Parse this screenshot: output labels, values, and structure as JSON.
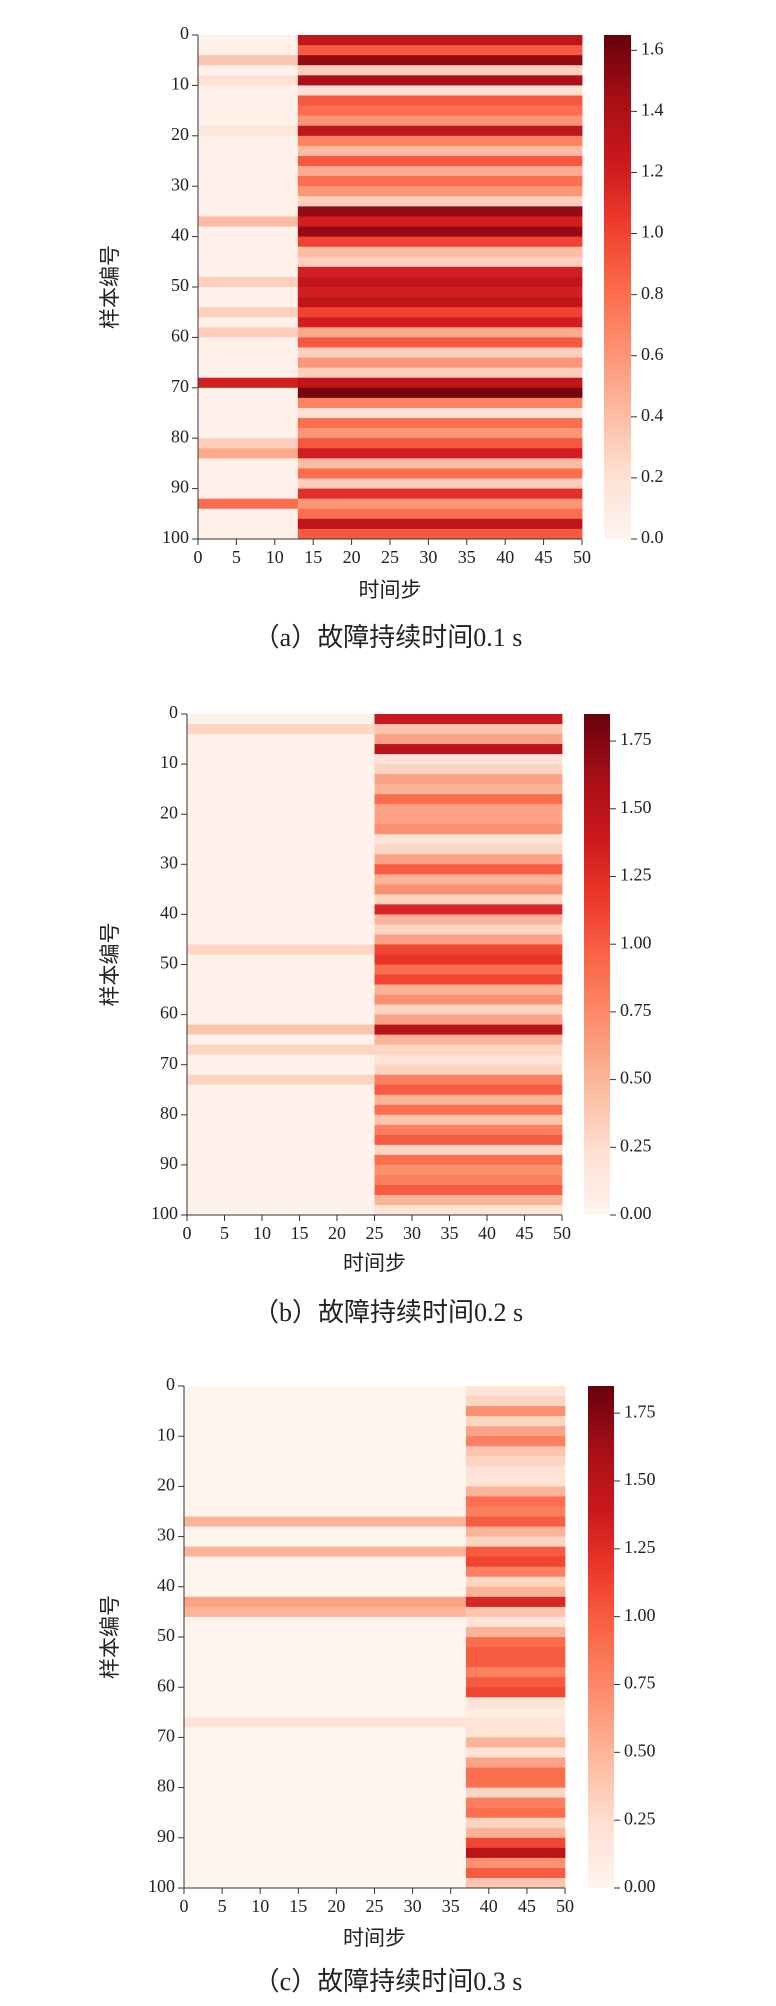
{
  "chart_data": [
    {
      "type": "heatmap",
      "caption": "（a）故障持续时间0.1 s",
      "xlabel": "时间步",
      "ylabel": "样本编号",
      "colormap": "Reds",
      "xlim": [
        0,
        50
      ],
      "ylim": [
        0,
        100
      ],
      "y_inverted": true,
      "clim": [
        0,
        1.65
      ],
      "xticks": [
        0,
        5,
        10,
        15,
        20,
        25,
        30,
        35,
        40,
        45,
        50
      ],
      "yticks": [
        0,
        10,
        20,
        30,
        40,
        50,
        60,
        70,
        80,
        90,
        100
      ],
      "cbar_ticks": [
        {
          "value": 0,
          "label": "0.0"
        },
        0.2,
        0.4,
        0.6,
        0.8,
        {
          "value": 1,
          "label": "1.0"
        },
        1.2,
        1.4,
        1.6
      ],
      "x_edges": [
        0,
        13,
        50
      ],
      "y_edges": [
        0,
        2,
        4,
        6,
        8,
        10,
        12,
        14,
        16,
        18,
        20,
        22,
        24,
        26,
        28,
        30,
        32,
        34,
        36,
        38,
        40,
        42,
        44,
        46,
        48,
        50,
        52,
        54,
        56,
        58,
        60,
        62,
        64,
        66,
        68,
        70,
        72,
        74,
        76,
        78,
        80,
        82,
        84,
        86,
        88,
        90,
        92,
        94,
        96,
        98,
        100
      ],
      "values": [
        [
          0.05,
          1.3
        ],
        [
          0.05,
          0.9
        ],
        [
          0.35,
          1.5
        ],
        [
          0.05,
          0.3
        ],
        [
          0.2,
          1.4
        ],
        [
          0.05,
          0.2
        ],
        [
          0.05,
          0.9
        ],
        [
          0.05,
          0.8
        ],
        [
          0.05,
          0.6
        ],
        [
          0.15,
          1.3
        ],
        [
          0.05,
          0.7
        ],
        [
          0.05,
          0.4
        ],
        [
          0.05,
          0.9
        ],
        [
          0.05,
          0.5
        ],
        [
          0.05,
          0.8
        ],
        [
          0.05,
          0.6
        ],
        [
          0.05,
          0.3
        ],
        [
          0.05,
          1.5
        ],
        [
          0.4,
          1.2
        ],
        [
          0.05,
          1.5
        ],
        [
          0.05,
          1.0
        ],
        [
          0.05,
          0.4
        ],
        [
          0.05,
          0.3
        ],
        [
          0.05,
          1.2
        ],
        [
          0.3,
          1.3
        ],
        [
          0.05,
          1.2
        ],
        [
          0.05,
          1.3
        ],
        [
          0.3,
          1.0
        ],
        [
          0.05,
          1.2
        ],
        [
          0.3,
          0.5
        ],
        [
          0.05,
          0.9
        ],
        [
          0.05,
          0.3
        ],
        [
          0.05,
          0.6
        ],
        [
          0.05,
          0.3
        ],
        [
          1.2,
          1.3
        ],
        [
          0.05,
          1.6
        ],
        [
          0.05,
          0.7
        ],
        [
          0.05,
          0.2
        ],
        [
          0.05,
          0.8
        ],
        [
          0.05,
          0.6
        ],
        [
          0.3,
          0.9
        ],
        [
          0.5,
          1.2
        ],
        [
          0.05,
          0.4
        ],
        [
          0.05,
          0.8
        ],
        [
          0.05,
          0.3
        ],
        [
          0.05,
          1.1
        ],
        [
          0.8,
          0.6
        ],
        [
          0.05,
          0.8
        ],
        [
          0.05,
          1.3
        ],
        [
          0.05,
          0.9
        ]
      ]
    },
    {
      "type": "heatmap",
      "caption": "（b）故障持续时间0.2 s",
      "xlabel": "时间步",
      "ylabel": "样本编号",
      "colormap": "Reds",
      "xlim": [
        0,
        50
      ],
      "ylim": [
        0,
        100
      ],
      "y_inverted": true,
      "clim": [
        0,
        1.85
      ],
      "xticks": [
        0,
        5,
        10,
        15,
        20,
        25,
        30,
        35,
        40,
        45,
        50
      ],
      "yticks": [
        0,
        10,
        20,
        30,
        40,
        50,
        60,
        70,
        80,
        90,
        100
      ],
      "cbar_ticks": [
        {
          "value": 0,
          "label": "0.00"
        },
        0.25,
        {
          "value": 0.5,
          "label": "0.50"
        },
        0.75,
        {
          "value": 1,
          "label": "1.00"
        },
        1.25,
        {
          "value": 1.5,
          "label": "1.50"
        },
        1.75
      ],
      "x_edges": [
        0,
        25,
        50
      ],
      "y_edges": [
        0,
        2,
        4,
        6,
        8,
        10,
        12,
        14,
        16,
        18,
        20,
        22,
        24,
        26,
        28,
        30,
        32,
        34,
        36,
        38,
        40,
        42,
        44,
        46,
        48,
        50,
        52,
        54,
        56,
        58,
        60,
        62,
        64,
        66,
        68,
        70,
        72,
        74,
        76,
        78,
        80,
        82,
        84,
        86,
        88,
        90,
        92,
        94,
        96,
        98,
        100
      ],
      "values": [
        [
          0.03,
          1.4
        ],
        [
          0.3,
          0.4
        ],
        [
          0.03,
          0.6
        ],
        [
          0.03,
          1.5
        ],
        [
          0.03,
          0.2
        ],
        [
          0.03,
          0.3
        ],
        [
          0.03,
          0.6
        ],
        [
          0.03,
          0.5
        ],
        [
          0.03,
          0.9
        ],
        [
          0.03,
          0.6
        ],
        [
          0.03,
          0.6
        ],
        [
          0.03,
          0.7
        ],
        [
          0.03,
          0.2
        ],
        [
          0.03,
          0.3
        ],
        [
          0.03,
          0.6
        ],
        [
          0.03,
          1.0
        ],
        [
          0.03,
          0.5
        ],
        [
          0.03,
          0.7
        ],
        [
          0.03,
          0.3
        ],
        [
          0.03,
          1.3
        ],
        [
          0.03,
          0.5
        ],
        [
          0.03,
          0.3
        ],
        [
          0.03,
          0.6
        ],
        [
          0.3,
          1.1
        ],
        [
          0.03,
          1.2
        ],
        [
          0.03,
          0.9
        ],
        [
          0.03,
          1.1
        ],
        [
          0.03,
          0.5
        ],
        [
          0.03,
          0.7
        ],
        [
          0.03,
          0.3
        ],
        [
          0.03,
          0.6
        ],
        [
          0.4,
          1.5
        ],
        [
          0.03,
          0.5
        ],
        [
          0.3,
          0.3
        ],
        [
          0.03,
          0.2
        ],
        [
          0.03,
          0.3
        ],
        [
          0.3,
          0.8
        ],
        [
          0.03,
          1.0
        ],
        [
          0.03,
          0.5
        ],
        [
          0.03,
          0.9
        ],
        [
          0.03,
          0.4
        ],
        [
          0.03,
          0.8
        ],
        [
          0.03,
          1.0
        ],
        [
          0.03,
          0.3
        ],
        [
          0.03,
          0.9
        ],
        [
          0.03,
          0.7
        ],
        [
          0.03,
          0.8
        ],
        [
          0.03,
          1.0
        ],
        [
          0.03,
          0.5
        ],
        [
          0.03,
          0.2
        ]
      ]
    },
    {
      "type": "heatmap",
      "caption": "（c）故障持续时间0.3 s",
      "xlabel": "时间步",
      "ylabel": "样本编号",
      "colormap": "Reds",
      "xlim": [
        0,
        50
      ],
      "ylim": [
        0,
        100
      ],
      "y_inverted": true,
      "clim": [
        0,
        1.85
      ],
      "xticks": [
        0,
        5,
        10,
        15,
        20,
        25,
        30,
        35,
        40,
        45,
        50
      ],
      "yticks": [
        0,
        10,
        20,
        30,
        40,
        50,
        60,
        70,
        80,
        90,
        100
      ],
      "cbar_ticks": [
        {
          "value": 0,
          "label": "0.00"
        },
        0.25,
        {
          "value": 0.5,
          "label": "0.50"
        },
        0.75,
        {
          "value": 1,
          "label": "1.00"
        },
        1.25,
        {
          "value": 1.5,
          "label": "1.50"
        },
        1.75
      ],
      "x_edges": [
        0,
        37,
        50
      ],
      "y_edges": [
        0,
        2,
        4,
        6,
        8,
        10,
        12,
        14,
        16,
        18,
        20,
        22,
        24,
        26,
        28,
        30,
        32,
        34,
        36,
        38,
        40,
        42,
        44,
        46,
        48,
        50,
        52,
        54,
        56,
        58,
        60,
        62,
        64,
        66,
        68,
        70,
        72,
        74,
        76,
        78,
        80,
        82,
        84,
        86,
        88,
        90,
        92,
        94,
        96,
        98,
        100
      ],
      "values": [
        [
          0.02,
          0.2
        ],
        [
          0.02,
          0.3
        ],
        [
          0.02,
          0.7
        ],
        [
          0.02,
          0.3
        ],
        [
          0.02,
          0.6
        ],
        [
          0.02,
          0.8
        ],
        [
          0.02,
          0.4
        ],
        [
          0.02,
          0.3
        ],
        [
          0.02,
          0.2
        ],
        [
          0.02,
          0.2
        ],
        [
          0.02,
          0.5
        ],
        [
          0.02,
          0.9
        ],
        [
          0.02,
          0.8
        ],
        [
          0.5,
          1.0
        ],
        [
          0.02,
          0.5
        ],
        [
          0.02,
          0.3
        ],
        [
          0.5,
          1.0
        ],
        [
          0.02,
          1.1
        ],
        [
          0.02,
          0.8
        ],
        [
          0.02,
          0.3
        ],
        [
          0.02,
          0.5
        ],
        [
          0.6,
          1.3
        ],
        [
          0.5,
          0.4
        ],
        [
          0.02,
          0.2
        ],
        [
          0.02,
          0.5
        ],
        [
          0.02,
          0.9
        ],
        [
          0.02,
          1.0
        ],
        [
          0.02,
          1.0
        ],
        [
          0.02,
          0.8
        ],
        [
          0.02,
          1.0
        ],
        [
          0.02,
          1.1
        ],
        [
          0.02,
          0.2
        ],
        [
          0.02,
          0.1
        ],
        [
          0.2,
          0.2
        ],
        [
          0.02,
          0.2
        ],
        [
          0.02,
          0.5
        ],
        [
          0.02,
          0.2
        ],
        [
          0.02,
          0.6
        ],
        [
          0.02,
          0.9
        ],
        [
          0.02,
          0.9
        ],
        [
          0.02,
          0.3
        ],
        [
          0.02,
          0.8
        ],
        [
          0.02,
          0.9
        ],
        [
          0.02,
          0.3
        ],
        [
          0.02,
          0.5
        ],
        [
          0.02,
          1.1
        ],
        [
          0.02,
          1.5
        ],
        [
          0.02,
          0.7
        ],
        [
          0.02,
          1.0
        ],
        [
          0.02,
          0.4
        ]
      ]
    }
  ]
}
